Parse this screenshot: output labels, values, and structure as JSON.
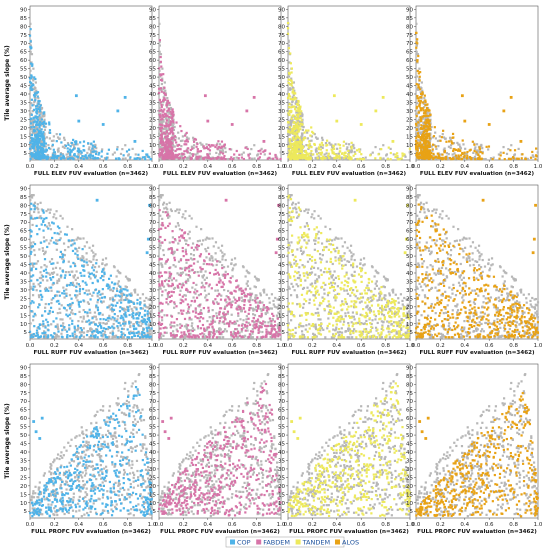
{
  "chart_data": {
    "type": "scatter",
    "grid": false,
    "legend_placement": "bottom-center",
    "colors": {
      "COP": "#4fb3e8",
      "FABDEM": "#d774a8",
      "TANDEM": "#ede95c",
      "ALOS": "#e8a215",
      "background_points": "#b7b7b7"
    },
    "legend": [
      "COP",
      "FABDEM",
      "TANDEM",
      "ALOS"
    ],
    "series_order": [
      "COP",
      "FABDEM",
      "TANDEM",
      "ALOS"
    ],
    "ylabel": "Tile average slope (%)",
    "xlim": [
      0,
      1
    ],
    "ylim": [
      1,
      92
    ],
    "x_ticks": [
      "0.0",
      "0.2",
      "0.4",
      "0.6",
      "0.8",
      "1.0"
    ],
    "y_ticks": [
      "5",
      "10",
      "15",
      "20",
      "25",
      "30",
      "35",
      "40",
      "45",
      "50",
      "55",
      "60",
      "65",
      "70",
      "75",
      "80",
      "85",
      "90"
    ],
    "rows": [
      {
        "xlabel": "FULL ELEV FUV  evaluation  (n=3462)",
        "pattern": "hyperbolic",
        "approx_points": [
          [
            0.02,
            85
          ],
          [
            0.03,
            70
          ],
          [
            0.05,
            55
          ],
          [
            0.08,
            40
          ],
          [
            0.12,
            25
          ],
          [
            0.2,
            15
          ],
          [
            0.4,
            9
          ],
          [
            0.6,
            7
          ],
          [
            0.8,
            5
          ],
          [
            1.0,
            4
          ]
        ],
        "outliers": [
          [
            0.38,
            39
          ],
          [
            0.78,
            38
          ],
          [
            0.72,
            30
          ],
          [
            0.6,
            22
          ],
          [
            0.4,
            24
          ],
          [
            0.86,
            12
          ]
        ]
      },
      {
        "xlabel": "FULL RUFF FUV  evaluation  (n=3462)",
        "pattern": "broad-decreasing",
        "approx_points": [
          [
            0.05,
            70
          ],
          [
            0.1,
            55
          ],
          [
            0.2,
            45
          ],
          [
            0.3,
            40
          ],
          [
            0.45,
            30
          ],
          [
            0.6,
            22
          ],
          [
            0.8,
            15
          ],
          [
            1.0,
            8
          ]
        ],
        "outliers": [
          [
            0.55,
            83
          ],
          [
            0.98,
            80
          ],
          [
            0.97,
            60
          ],
          [
            0.96,
            52
          ]
        ]
      },
      {
        "xlabel": "FULL PROFC FUV  evaluation  (n=3462)",
        "pattern": "triangular",
        "approx_points": [
          [
            0.05,
            15
          ],
          [
            0.2,
            35
          ],
          [
            0.4,
            50
          ],
          [
            0.6,
            62
          ],
          [
            0.75,
            75
          ],
          [
            0.85,
            85
          ],
          [
            0.95,
            30
          ],
          [
            1.0,
            5
          ]
        ],
        "outliers": [
          [
            0.08,
            48
          ],
          [
            0.05,
            52
          ],
          [
            0.03,
            58
          ],
          [
            0.1,
            60
          ]
        ]
      }
    ],
    "panels": [
      {
        "row": 0,
        "series": "COP",
        "xlabel": "FULL ELEV FUV  evaluation  (n=3462)"
      },
      {
        "row": 0,
        "series": "FABDEM",
        "xlabel": "FULL ELEV FUV  evaluation  (n=3462)"
      },
      {
        "row": 0,
        "series": "TANDEM",
        "xlabel": "FULL ELEV FUV  evaluation  (n=3462)"
      },
      {
        "row": 0,
        "series": "ALOS",
        "xlabel": "FULL ELEV FUV  evaluation  (n=3462)"
      },
      {
        "row": 1,
        "series": "COP",
        "xlabel": "FULL RUFF FUV  evaluation  (n=3462)"
      },
      {
        "row": 1,
        "series": "FABDEM",
        "xlabel": "FULL RUFF FUV  evaluation  (n=3462)"
      },
      {
        "row": 1,
        "series": "TANDEM",
        "xlabel": "FULL RUFF FUV  evaluation  (n=3462)"
      },
      {
        "row": 1,
        "series": "ALOS",
        "xlabel": "FULL RUFF FUV  evaluation  (n=3462)"
      },
      {
        "row": 2,
        "series": "COP",
        "xlabel": "FULL PROFC FUV  evaluation  (n=3462)"
      },
      {
        "row": 2,
        "series": "FABDEM",
        "xlabel": "FULL PROFC FUV  evaluation  (n=3462)"
      },
      {
        "row": 2,
        "series": "TANDEM",
        "xlabel": "FULL PROFC FUV  evaluation  (n=3462)"
      },
      {
        "row": 2,
        "series": "ALOS",
        "xlabel": "FULL PROFC FUV  evaluation  (n=3462)"
      }
    ]
  }
}
